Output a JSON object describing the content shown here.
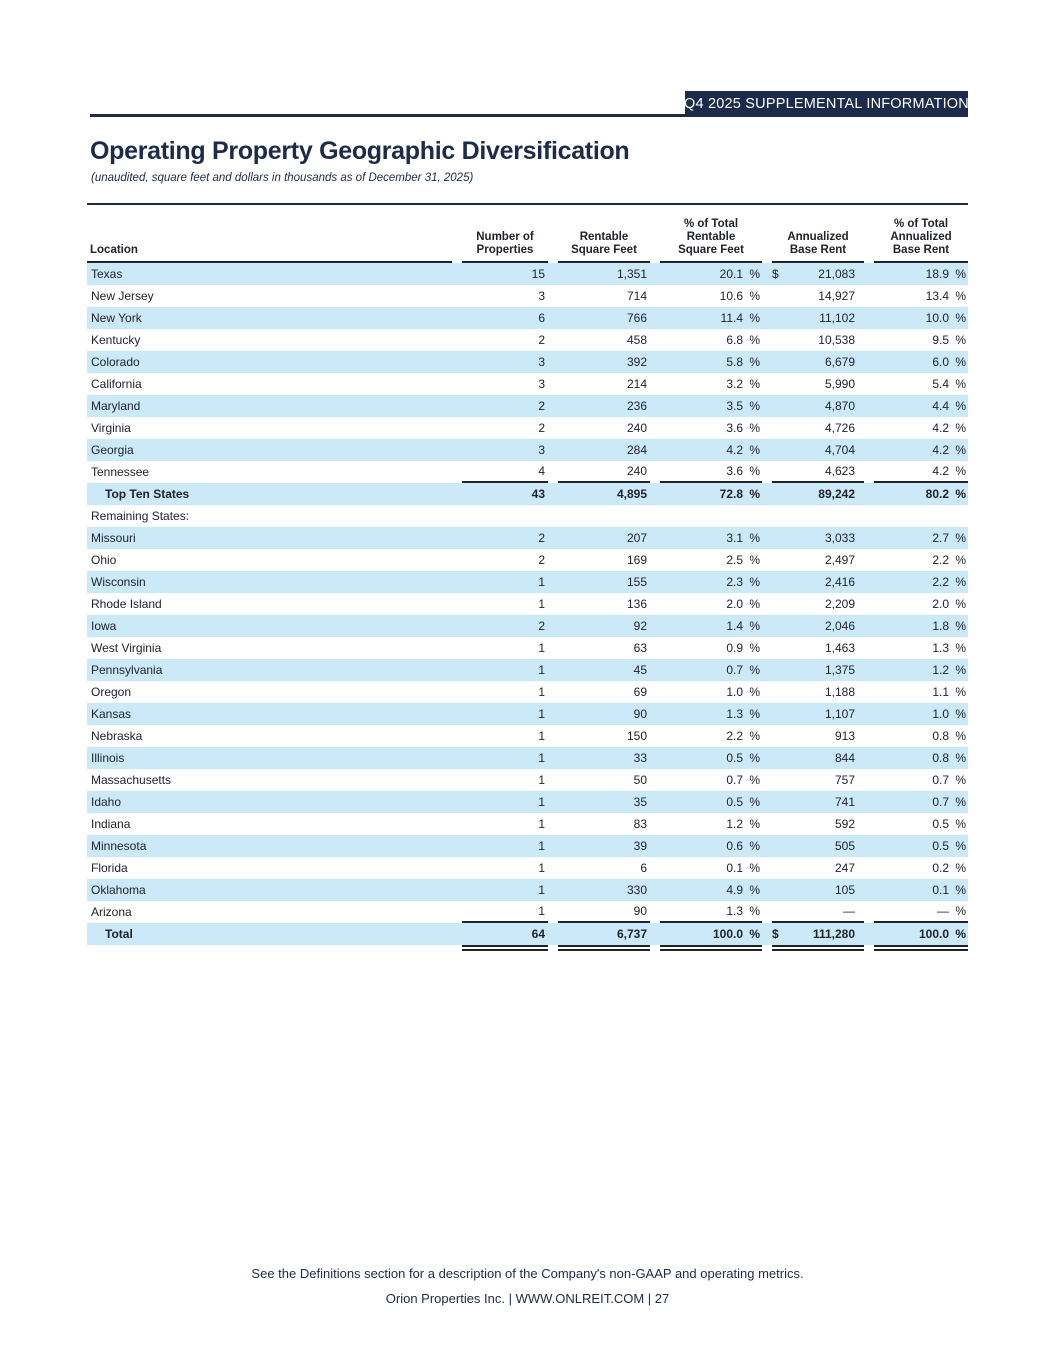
{
  "header": {
    "tag": "Q4 2025 SUPPLEMENTAL INFORMATION",
    "title": "Operating Property Geographic Diversification",
    "subtitle": "(unaudited, square feet and dollars in thousands as of December 31, 2025)"
  },
  "table": {
    "columns": [
      "Location",
      "Number of\nProperties",
      "Rentable\nSquare Feet",
      "% of Total\nRentable\nSquare Feet",
      "Annualized\nBase Rent",
      "% of Total\nAnnualized\nBase Rent"
    ],
    "percent_sign": "%",
    "rows": [
      {
        "label": "Texas",
        "shaded": true,
        "props": "15",
        "rsf": "1,351",
        "pct_rsf": "20.1",
        "dollar": "$",
        "abr": "21,083",
        "pct_abr": "18.9"
      },
      {
        "label": "New Jersey",
        "props": "3",
        "rsf": "714",
        "pct_rsf": "10.6",
        "abr": "14,927",
        "pct_abr": "13.4"
      },
      {
        "label": "New York",
        "shaded": true,
        "props": "6",
        "rsf": "766",
        "pct_rsf": "11.4",
        "abr": "11,102",
        "pct_abr": "10.0"
      },
      {
        "label": "Kentucky",
        "props": "2",
        "rsf": "458",
        "pct_rsf": "6.8",
        "abr": "10,538",
        "pct_abr": "9.5"
      },
      {
        "label": "Colorado",
        "shaded": true,
        "props": "3",
        "rsf": "392",
        "pct_rsf": "5.8",
        "abr": "6,679",
        "pct_abr": "6.0"
      },
      {
        "label": "California",
        "props": "3",
        "rsf": "214",
        "pct_rsf": "3.2",
        "abr": "5,990",
        "pct_abr": "5.4"
      },
      {
        "label": "Maryland",
        "shaded": true,
        "props": "2",
        "rsf": "236",
        "pct_rsf": "3.5",
        "abr": "4,870",
        "pct_abr": "4.4"
      },
      {
        "label": "Virginia",
        "props": "2",
        "rsf": "240",
        "pct_rsf": "3.6",
        "abr": "4,726",
        "pct_abr": "4.2"
      },
      {
        "label": "Georgia",
        "shaded": true,
        "props": "3",
        "rsf": "284",
        "pct_rsf": "4.2",
        "abr": "4,704",
        "pct_abr": "4.2"
      },
      {
        "label": "Tennessee",
        "props": "4",
        "rsf": "240",
        "pct_rsf": "3.6",
        "abr": "4,623",
        "pct_abr": "4.2",
        "rule": true
      },
      {
        "label": "Top Ten States",
        "shaded": true,
        "bold": true,
        "indent": true,
        "props": "43",
        "rsf": "4,895",
        "pct_rsf": "72.8",
        "abr": "89,242",
        "pct_abr": "80.2"
      },
      {
        "label": "Remaining States:",
        "type": "label"
      },
      {
        "label": "Missouri",
        "shaded": true,
        "props": "2",
        "rsf": "207",
        "pct_rsf": "3.1",
        "abr": "3,033",
        "pct_abr": "2.7"
      },
      {
        "label": "Ohio",
        "props": "2",
        "rsf": "169",
        "pct_rsf": "2.5",
        "abr": "2,497",
        "pct_abr": "2.2"
      },
      {
        "label": "Wisconsin",
        "shaded": true,
        "props": "1",
        "rsf": "155",
        "pct_rsf": "2.3",
        "abr": "2,416",
        "pct_abr": "2.2"
      },
      {
        "label": "Rhode Island",
        "props": "1",
        "rsf": "136",
        "pct_rsf": "2.0",
        "abr": "2,209",
        "pct_abr": "2.0"
      },
      {
        "label": "Iowa",
        "shaded": true,
        "props": "2",
        "rsf": "92",
        "pct_rsf": "1.4",
        "abr": "2,046",
        "pct_abr": "1.8"
      },
      {
        "label": "West Virginia",
        "props": "1",
        "rsf": "63",
        "pct_rsf": "0.9",
        "abr": "1,463",
        "pct_abr": "1.3"
      },
      {
        "label": "Pennsylvania",
        "shaded": true,
        "props": "1",
        "rsf": "45",
        "pct_rsf": "0.7",
        "abr": "1,375",
        "pct_abr": "1.2"
      },
      {
        "label": "Oregon",
        "props": "1",
        "rsf": "69",
        "pct_rsf": "1.0",
        "abr": "1,188",
        "pct_abr": "1.1"
      },
      {
        "label": "Kansas",
        "shaded": true,
        "props": "1",
        "rsf": "90",
        "pct_rsf": "1.3",
        "abr": "1,107",
        "pct_abr": "1.0"
      },
      {
        "label": "Nebraska",
        "props": "1",
        "rsf": "150",
        "pct_rsf": "2.2",
        "abr": "913",
        "pct_abr": "0.8"
      },
      {
        "label": "Illinois",
        "shaded": true,
        "props": "1",
        "rsf": "33",
        "pct_rsf": "0.5",
        "abr": "844",
        "pct_abr": "0.8"
      },
      {
        "label": "Massachusetts",
        "props": "1",
        "rsf": "50",
        "pct_rsf": "0.7",
        "abr": "757",
        "pct_abr": "0.7"
      },
      {
        "label": "Idaho",
        "shaded": true,
        "props": "1",
        "rsf": "35",
        "pct_rsf": "0.5",
        "abr": "741",
        "pct_abr": "0.7"
      },
      {
        "label": "Indiana",
        "props": "1",
        "rsf": "83",
        "pct_rsf": "1.2",
        "abr": "592",
        "pct_abr": "0.5"
      },
      {
        "label": "Minnesota",
        "shaded": true,
        "props": "1",
        "rsf": "39",
        "pct_rsf": "0.6",
        "abr": "505",
        "pct_abr": "0.5"
      },
      {
        "label": "Florida",
        "props": "1",
        "rsf": "6",
        "pct_rsf": "0.1",
        "abr": "247",
        "pct_abr": "0.2"
      },
      {
        "label": "Oklahoma",
        "shaded": true,
        "props": "1",
        "rsf": "330",
        "pct_rsf": "4.9",
        "abr": "105",
        "pct_abr": "0.1"
      },
      {
        "label": "Arizona",
        "props": "1",
        "rsf": "90",
        "pct_rsf": "1.3",
        "abr": "—",
        "pct_abr": "—",
        "rule": true
      },
      {
        "label": "Total",
        "shaded": true,
        "bold": true,
        "indent": true,
        "props": "64",
        "rsf": "6,737",
        "pct_rsf": "100.0",
        "dollar": "$",
        "abr": "111,280",
        "pct_abr": "100.0"
      }
    ]
  },
  "footer": {
    "note": "See the Definitions section for a description of the Company's non-GAAP and operating metrics.",
    "info": "Orion Properties Inc.   |   WWW.ONLREIT.COM   |   27"
  },
  "colors": {
    "navy": "#1c2b4a",
    "row_highlight": "#cce9f9",
    "rule": "#20222a"
  }
}
